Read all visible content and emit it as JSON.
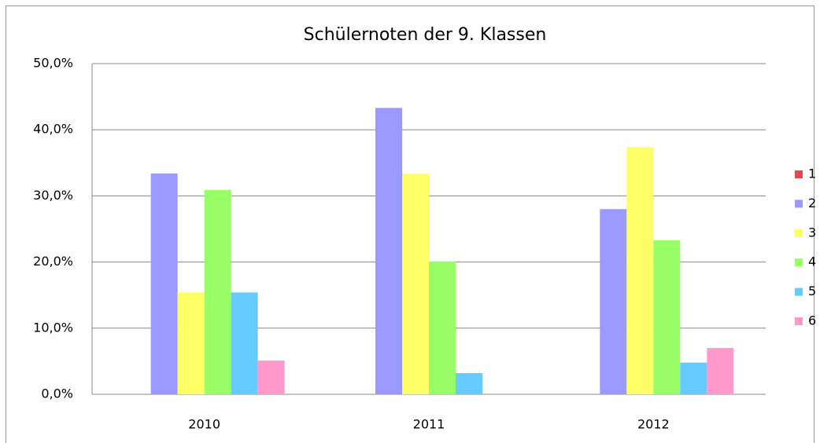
{
  "chart_data": {
    "type": "bar",
    "title": "Schülernoten der 9. Klassen",
    "categories": [
      "2010",
      "2011",
      "2012"
    ],
    "series": [
      {
        "name": "1",
        "color": "#e04b4b",
        "values": [
          0,
          0,
          0
        ]
      },
      {
        "name": "2",
        "color": "#9999ff",
        "values": [
          33.4,
          43.3,
          28.0
        ]
      },
      {
        "name": "3",
        "color": "#ffff66",
        "values": [
          15.4,
          33.4,
          37.4
        ]
      },
      {
        "name": "4",
        "color": "#99ff66",
        "values": [
          30.9,
          20.1,
          23.3
        ]
      },
      {
        "name": "5",
        "color": "#66ccff",
        "values": [
          15.4,
          3.2,
          4.8
        ]
      },
      {
        "name": "6",
        "color": "#ff99cc",
        "values": [
          5.1,
          0,
          7.0
        ]
      }
    ],
    "ylim": [
      0,
      50
    ],
    "yticks": [
      {
        "value": 0,
        "label": "0,0%"
      },
      {
        "value": 10,
        "label": "10,0%"
      },
      {
        "value": 20,
        "label": "20,0%"
      },
      {
        "value": 30,
        "label": "30,0%"
      },
      {
        "value": 40,
        "label": "40,0%"
      },
      {
        "value": 50,
        "label": "50,0%"
      }
    ],
    "grid": true,
    "legend": "right"
  }
}
